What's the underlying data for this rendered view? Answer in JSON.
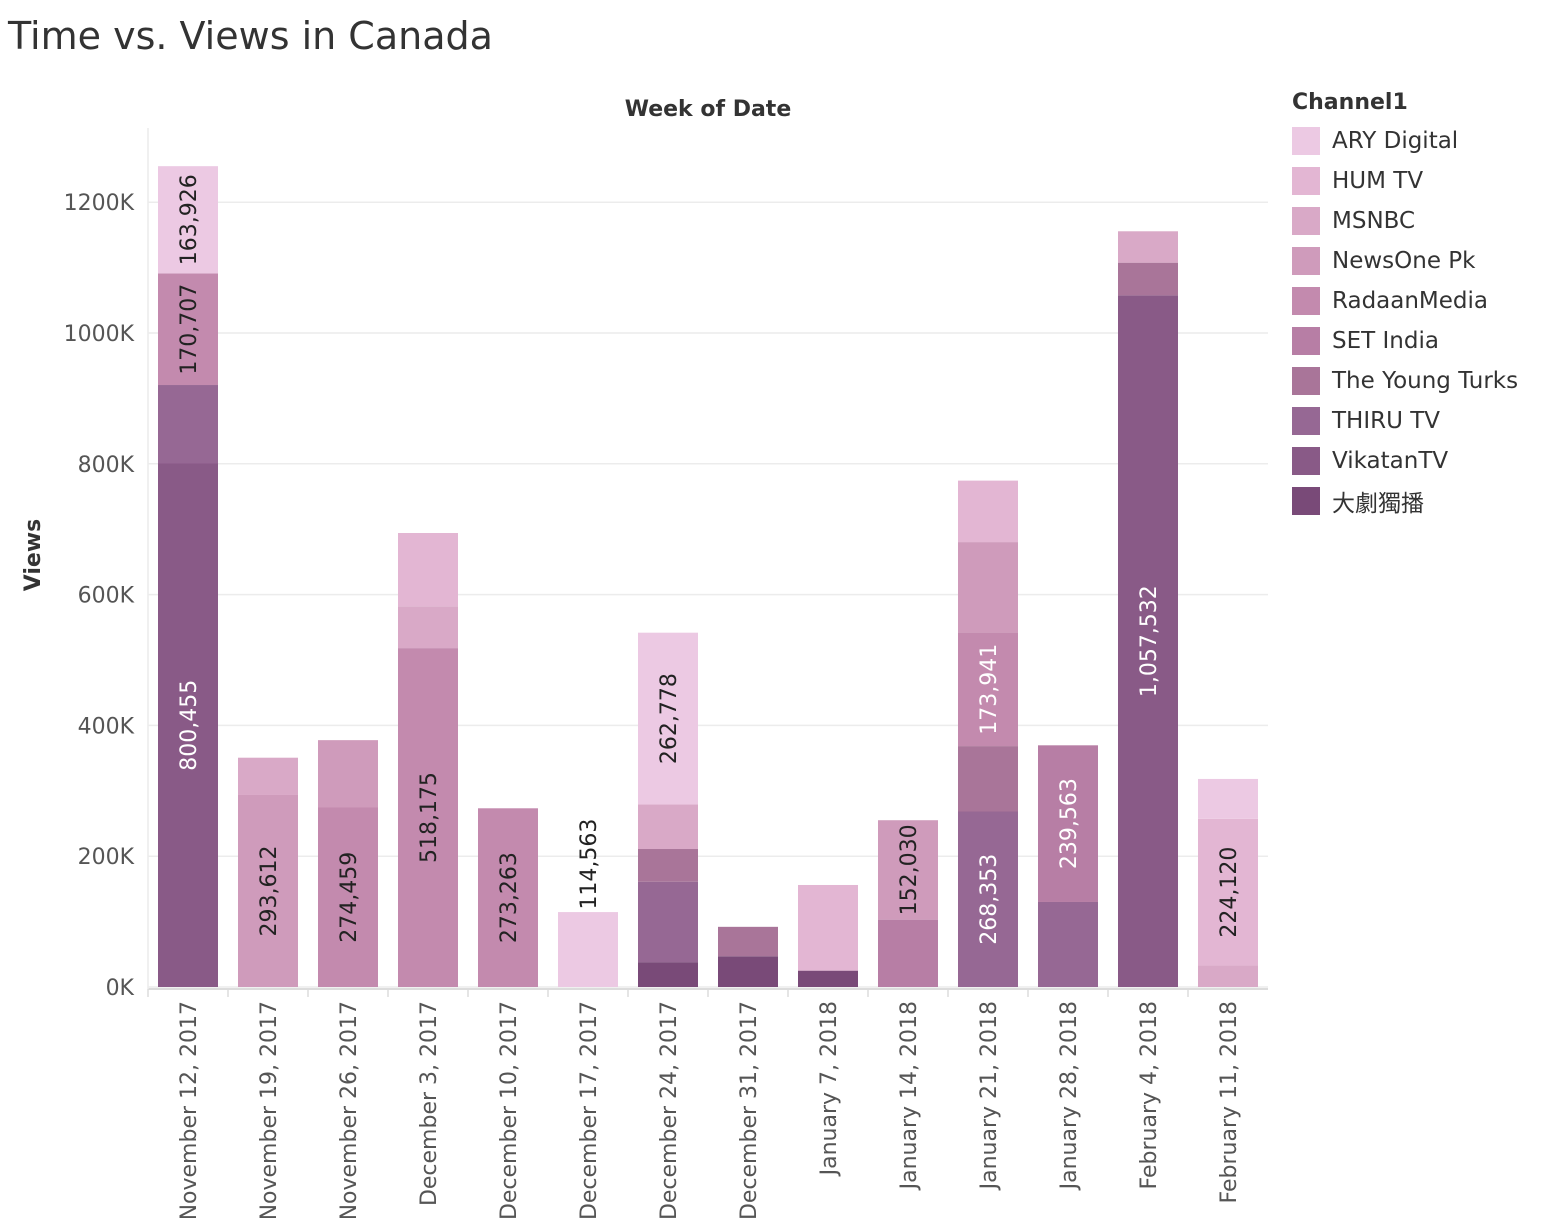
{
  "title": "Time vs. Views in Canada",
  "legend": {
    "title": "Channel1",
    "items": [
      {
        "name": "ARY Digital",
        "color": "#ecc9e3"
      },
      {
        "name": "HUM TV",
        "color": "#e3b6d3"
      },
      {
        "name": "MSNBC",
        "color": "#d9a9c7"
      },
      {
        "name": "NewsOne Pk",
        "color": "#cf9bbb"
      },
      {
        "name": "RadaanMedia",
        "color": "#c38aae"
      },
      {
        "name": "SET India",
        "color": "#b77ea5"
      },
      {
        "name": "The Young Turks",
        "color": "#a97599"
      },
      {
        "name": "THIRU TV",
        "color": "#966894"
      },
      {
        "name": "VikatanTV",
        "color": "#895a87"
      },
      {
        "name": "大劇獨播",
        "color": "#794a78"
      }
    ]
  },
  "chart_data": {
    "type": "bar",
    "stacked": true,
    "title": "Time vs. Views in Canada",
    "column_header": "Week of Date",
    "ylabel": "Views",
    "ylim": [
      0,
      1300000
    ],
    "yticks": [
      "0K",
      "200K",
      "400K",
      "600K",
      "800K",
      "1000K",
      "1200K"
    ],
    "grid": true,
    "legend_position": "right",
    "categories": [
      "November 12, 2017",
      "November 19, 2017",
      "November 26, 2017",
      "December 3, 2017",
      "December 10, 2017",
      "December 17, 2017",
      "December 24, 2017",
      "December 31, 2017",
      "January 7, 2018",
      "January 14, 2018",
      "January 21, 2018",
      "January 28, 2018",
      "February 4, 2018",
      "February 11, 2018"
    ],
    "bars": [
      {
        "segments": [
          {
            "series": "VikatanTV",
            "value": 800455,
            "label": "800,455"
          },
          {
            "series": "THIRU TV",
            "value": 120000
          },
          {
            "series": "RadaanMedia",
            "value": 170707,
            "label": "170,707"
          },
          {
            "series": "ARY Digital",
            "value": 163926,
            "label": "163,926"
          }
        ]
      },
      {
        "segments": [
          {
            "series": "NewsOne Pk",
            "value": 293612,
            "label": "293,612"
          },
          {
            "series": "MSNBC",
            "value": 57000
          }
        ]
      },
      {
        "segments": [
          {
            "series": "RadaanMedia",
            "value": 274459,
            "label": "274,459"
          },
          {
            "series": "NewsOne Pk",
            "value": 103000
          }
        ]
      },
      {
        "segments": [
          {
            "series": "RadaanMedia",
            "value": 518175,
            "label": "518,175"
          },
          {
            "series": "MSNBC",
            "value": 64000
          },
          {
            "series": "HUM TV",
            "value": 112000
          }
        ]
      },
      {
        "segments": [
          {
            "series": "RadaanMedia",
            "value": 273263,
            "label": "273,263"
          }
        ]
      },
      {
        "segments": [
          {
            "series": "ARY Digital",
            "value": 114563,
            "label": "114,563"
          }
        ]
      },
      {
        "segments": [
          {
            "series": "大劇獨播",
            "value": 38000
          },
          {
            "series": "THIRU TV",
            "value": 123000
          },
          {
            "series": "The Young Turks",
            "value": 50000
          },
          {
            "series": "MSNBC",
            "value": 68000
          },
          {
            "series": "ARY Digital",
            "value": 262778,
            "label": "262,778"
          }
        ]
      },
      {
        "segments": [
          {
            "series": "大劇獨播",
            "value": 47000
          },
          {
            "series": "The Young Turks",
            "value": 45000
          }
        ]
      },
      {
        "segments": [
          {
            "series": "大劇獨播",
            "value": 25000
          },
          {
            "series": "HUM TV",
            "value": 131000
          }
        ]
      },
      {
        "segments": [
          {
            "series": "SET India",
            "value": 103000
          },
          {
            "series": "NewsOne Pk",
            "value": 152030,
            "label": "152,030"
          }
        ]
      },
      {
        "segments": [
          {
            "series": "THIRU TV",
            "value": 268353,
            "label": "268,353"
          },
          {
            "series": "The Young Turks",
            "value": 100000
          },
          {
            "series": "RadaanMedia",
            "value": 173941,
            "label": "173,941"
          },
          {
            "series": "NewsOne Pk",
            "value": 138000
          },
          {
            "series": "HUM TV",
            "value": 94000
          }
        ]
      },
      {
        "segments": [
          {
            "series": "THIRU TV",
            "value": 130000
          },
          {
            "series": "SET India",
            "value": 239563,
            "label": "239,563"
          }
        ]
      },
      {
        "segments": [
          {
            "series": "VikatanTV",
            "value": 1057532,
            "label": "1,057,532"
          },
          {
            "series": "The Young Turks",
            "value": 50000
          },
          {
            "series": "MSNBC",
            "value": 48000
          }
        ]
      },
      {
        "segments": [
          {
            "series": "MSNBC",
            "value": 33000
          },
          {
            "series": "HUM TV",
            "value": 224120,
            "label": "224,120"
          },
          {
            "series": "ARY Digital",
            "value": 61000
          }
        ]
      }
    ]
  }
}
